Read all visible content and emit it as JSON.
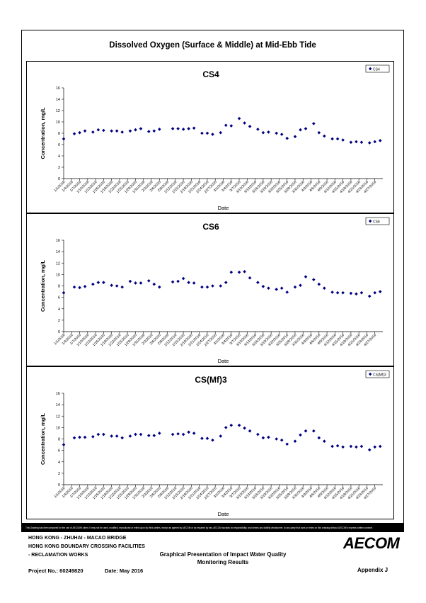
{
  "document": {
    "main_title": "Dissolved Oxygen (Surface & Middle) at Mid-Ebb Tide",
    "disclaimer": "This Drawing has been prepared for the use of AECOM's client. It may not be used, modified, reproduced or relied upon by third parties, except as agreed by AECOM or as required by law. AECOM accepts no responsibility, and denies any liability whatsoever, to any party that uses or relies on this drawing without AECOM's express written consent.",
    "project_line1": "HONG KONG - ZHUHAI - MACAO BRIDGE",
    "project_line2": "HONG KONG BOUNDARY CROSSING FACILITIES",
    "project_line3": "- RECLAMATION WORKS",
    "graph_title_line1": "Graphical Presentation of Impact Water Quality",
    "graph_title_line2": "Monitoring Results",
    "project_no": "Project No.: 60249820",
    "date": "Date: May 2016",
    "appendix": "Appendix J",
    "logo_text": "AECOM"
  },
  "chart_data": [
    {
      "type": "scatter",
      "title": "CS4",
      "xlabel": "Date",
      "ylabel": "Concentration, mg/L",
      "ylim": [
        0,
        16
      ],
      "yticks": [
        0,
        2,
        4,
        6,
        8,
        10,
        12,
        14,
        16
      ],
      "xticks": [
        "1/1/2016",
        "1/4/2016",
        "1/7/2016",
        "1/10/2016",
        "1/13/2016",
        "1/16/2016",
        "1/19/2016",
        "1/22/2016",
        "1/25/2016",
        "1/28/2016",
        "1/31/2016",
        "2/3/2016",
        "2/6/2016",
        "2/9/2016",
        "2/12/2016",
        "2/15/2016",
        "2/18/2016",
        "2/21/2016",
        "2/24/2016",
        "2/27/2016",
        "3/1/2016",
        "3/4/2016",
        "3/7/2016",
        "3/10/2016",
        "3/13/2016",
        "3/16/2016",
        "3/19/2016",
        "3/22/2016",
        "3/25/2016",
        "3/28/2016",
        "3/31/2016",
        "4/3/2016",
        "4/6/2016",
        "4/9/2016",
        "4/12/2016",
        "4/15/2016",
        "4/18/2016",
        "4/21/2016",
        "4/24/2016",
        "4/27/2016"
      ],
      "legend": {
        "label": "CS4",
        "position": "top-right"
      },
      "marker_color": "#000080",
      "series": [
        {
          "name": "CS4",
          "x": [
            "1/1/2016",
            "1/5/2016",
            "1/7/2016",
            "1/9/2016",
            "1/12/2016",
            "1/14/2016",
            "1/16/2016",
            "1/19/2016",
            "1/21/2016",
            "1/23/2016",
            "1/26/2016",
            "1/28/2016",
            "1/30/2016",
            "2/2/2016",
            "2/4/2016",
            "2/6/2016",
            "2/11/2016",
            "2/13/2016",
            "2/15/2016",
            "2/17/2016",
            "2/19/2016",
            "2/22/2016",
            "2/24/2016",
            "2/26/2016",
            "2/29/2016",
            "3/2/2016",
            "3/4/2016",
            "3/7/2016",
            "3/9/2016",
            "3/11/2016",
            "3/14/2016",
            "3/16/2016",
            "3/18/2016",
            "3/21/2016",
            "3/23/2016",
            "3/25/2016",
            "3/28/2016",
            "3/30/2016",
            "4/1/2016",
            "4/4/2016",
            "4/6/2016",
            "4/8/2016",
            "4/11/2016",
            "4/13/2016",
            "4/15/2016",
            "4/18/2016",
            "4/20/2016",
            "4/22/2016",
            "4/25/2016",
            "4/27/2016",
            "4/29/2016"
          ],
          "y": [
            7.0,
            7.9,
            8.1,
            8.4,
            8.2,
            8.6,
            8.5,
            8.4,
            8.4,
            8.2,
            8.4,
            8.6,
            8.8,
            8.3,
            8.4,
            8.7,
            8.8,
            8.8,
            8.7,
            8.8,
            8.9,
            8.0,
            8.0,
            7.8,
            8.1,
            9.4,
            9.3,
            10.6,
            9.8,
            9.2,
            8.7,
            8.1,
            8.2,
            8.0,
            7.8,
            7.1,
            7.4,
            8.6,
            8.8,
            9.7,
            8.1,
            7.5,
            7.0,
            7.0,
            6.8,
            6.4,
            6.5,
            6.4,
            6.3,
            6.5,
            6.7
          ]
        }
      ]
    },
    {
      "type": "scatter",
      "title": "CS6",
      "xlabel": "Date",
      "ylabel": "Concentration, mg/L",
      "ylim": [
        0,
        16
      ],
      "yticks": [
        0,
        2,
        4,
        6,
        8,
        10,
        12,
        14,
        16
      ],
      "xticks": [
        "1/1/2016",
        "1/4/2016",
        "1/7/2016",
        "1/10/2016",
        "1/13/2016",
        "1/16/2016",
        "1/19/2016",
        "1/22/2016",
        "1/25/2016",
        "1/28/2016",
        "1/31/2016",
        "2/3/2016",
        "2/6/2016",
        "2/9/2016",
        "2/12/2016",
        "2/15/2016",
        "2/18/2016",
        "2/21/2016",
        "2/24/2016",
        "2/27/2016",
        "3/1/2016",
        "3/4/2016",
        "3/7/2016",
        "3/10/2016",
        "3/13/2016",
        "3/16/2016",
        "3/19/2016",
        "3/22/2016",
        "3/25/2016",
        "3/28/2016",
        "3/31/2016",
        "4/3/2016",
        "4/6/2016",
        "4/9/2016",
        "4/12/2016",
        "4/15/2016",
        "4/18/2016",
        "4/21/2016",
        "4/24/2016",
        "4/27/2016"
      ],
      "legend": {
        "label": "CS6",
        "position": "top-right"
      },
      "marker_color": "#000080",
      "series": [
        {
          "name": "CS6",
          "x": [
            "1/1/2016",
            "1/5/2016",
            "1/7/2016",
            "1/9/2016",
            "1/12/2016",
            "1/14/2016",
            "1/16/2016",
            "1/19/2016",
            "1/21/2016",
            "1/23/2016",
            "1/26/2016",
            "1/28/2016",
            "1/30/2016",
            "2/2/2016",
            "2/4/2016",
            "2/6/2016",
            "2/11/2016",
            "2/13/2016",
            "2/15/2016",
            "2/17/2016",
            "2/19/2016",
            "2/22/2016",
            "2/24/2016",
            "2/26/2016",
            "2/29/2016",
            "3/2/2016",
            "3/4/2016",
            "3/7/2016",
            "3/9/2016",
            "3/11/2016",
            "3/14/2016",
            "3/16/2016",
            "3/18/2016",
            "3/21/2016",
            "3/23/2016",
            "3/25/2016",
            "3/28/2016",
            "3/30/2016",
            "4/1/2016",
            "4/4/2016",
            "4/6/2016",
            "4/8/2016",
            "4/11/2016",
            "4/13/2016",
            "4/15/2016",
            "4/18/2016",
            "4/20/2016",
            "4/22/2016",
            "4/25/2016",
            "4/27/2016",
            "4/29/2016"
          ],
          "y": [
            6.8,
            7.8,
            7.7,
            7.9,
            8.3,
            8.6,
            8.6,
            8.1,
            8.0,
            7.8,
            8.8,
            8.5,
            8.5,
            8.9,
            8.3,
            7.8,
            8.7,
            8.8,
            9.3,
            8.6,
            8.5,
            7.8,
            7.8,
            8.0,
            8.0,
            8.6,
            10.4,
            10.4,
            10.5,
            9.4,
            8.6,
            7.9,
            7.6,
            7.4,
            7.6,
            6.9,
            7.8,
            8.1,
            9.6,
            9.1,
            8.3,
            7.6,
            6.9,
            6.8,
            6.8,
            6.7,
            6.6,
            6.8,
            6.2,
            6.8,
            7.0
          ]
        }
      ]
    },
    {
      "type": "scatter",
      "title": "CS(Mf)3",
      "xlabel": "Date",
      "ylabel": "Concentration, mg/L",
      "ylim": [
        0,
        16
      ],
      "yticks": [
        0,
        2,
        4,
        6,
        8,
        10,
        12,
        14,
        16
      ],
      "xticks": [
        "1/1/2016",
        "1/4/2016",
        "1/7/2016",
        "1/10/2016",
        "1/13/2016",
        "1/16/2016",
        "1/19/2016",
        "1/22/2016",
        "1/25/2016",
        "1/28/2016",
        "1/31/2016",
        "2/3/2016",
        "2/6/2016",
        "2/9/2016",
        "2/12/2016",
        "2/15/2016",
        "2/18/2016",
        "2/21/2016",
        "2/24/2016",
        "2/27/2016",
        "3/1/2016",
        "3/4/2016",
        "3/7/2016",
        "3/10/2016",
        "3/13/2016",
        "3/16/2016",
        "3/19/2016",
        "3/22/2016",
        "3/25/2016",
        "3/28/2016",
        "3/31/2016",
        "4/3/2016",
        "4/6/2016",
        "4/9/2016",
        "4/12/2016",
        "4/15/2016",
        "4/18/2016",
        "4/21/2016",
        "4/24/2016",
        "4/27/2016"
      ],
      "legend": {
        "label": "CS(Mf)3",
        "position": "top-right"
      },
      "marker_color": "#000080",
      "series": [
        {
          "name": "CS(Mf)3",
          "x": [
            "1/1/2016",
            "1/5/2016",
            "1/7/2016",
            "1/9/2016",
            "1/12/2016",
            "1/14/2016",
            "1/16/2016",
            "1/19/2016",
            "1/21/2016",
            "1/23/2016",
            "1/26/2016",
            "1/28/2016",
            "1/30/2016",
            "2/2/2016",
            "2/4/2016",
            "2/6/2016",
            "2/11/2016",
            "2/13/2016",
            "2/15/2016",
            "2/17/2016",
            "2/19/2016",
            "2/22/2016",
            "2/24/2016",
            "2/26/2016",
            "2/29/2016",
            "3/2/2016",
            "3/4/2016",
            "3/7/2016",
            "3/9/2016",
            "3/11/2016",
            "3/14/2016",
            "3/16/2016",
            "3/18/2016",
            "3/21/2016",
            "3/23/2016",
            "3/25/2016",
            "3/28/2016",
            "3/30/2016",
            "4/1/2016",
            "4/4/2016",
            "4/6/2016",
            "4/8/2016",
            "4/11/2016",
            "4/13/2016",
            "4/15/2016",
            "4/18/2016",
            "4/20/2016",
            "4/22/2016",
            "4/25/2016",
            "4/27/2016",
            "4/29/2016"
          ],
          "y": [
            7.0,
            8.2,
            8.3,
            8.3,
            8.4,
            8.8,
            8.8,
            8.5,
            8.5,
            8.2,
            8.5,
            8.8,
            8.8,
            8.6,
            8.6,
            9.0,
            8.8,
            8.9,
            8.8,
            9.2,
            9.0,
            8.1,
            8.1,
            7.8,
            8.5,
            10.0,
            10.4,
            10.4,
            9.9,
            9.4,
            8.8,
            8.2,
            8.3,
            8.0,
            7.8,
            7.1,
            7.6,
            8.7,
            9.4,
            9.4,
            8.2,
            7.6,
            6.7,
            6.8,
            6.6,
            6.7,
            6.6,
            6.7,
            6.1,
            6.6,
            6.7
          ]
        }
      ]
    }
  ]
}
